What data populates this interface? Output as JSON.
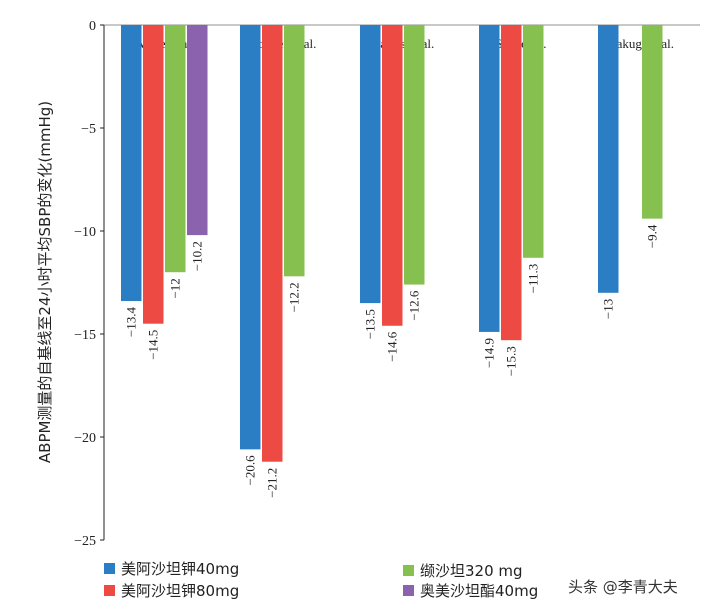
{
  "chart_data": {
    "type": "bar",
    "ylabel": "ABPM测量的自基线至24小时平均SBP的变化(mmHg)",
    "ylim": [
      -25,
      0
    ],
    "yticks": [
      "0",
      "-5",
      "-10",
      "-15",
      "-20",
      "-25"
    ],
    "grid": false,
    "legend_position": "bottom",
    "categories": [
      "White et al.",
      "Bonner et al.",
      "Bakris et al.",
      "Sica et al.",
      "Rakugi et al."
    ],
    "series": [
      {
        "name": "美阿沙坦钾40mg",
        "color": "#2b7ec4",
        "values": [
          -13.4,
          -20.6,
          -13.5,
          -14.9,
          -13
        ]
      },
      {
        "name": "美阿沙坦钾80mg",
        "color": "#ee4a44",
        "values": [
          -14.5,
          -21.2,
          -14.6,
          -15.3,
          null
        ]
      },
      {
        "name": "缬沙坦320 mg",
        "color": "#86c04f",
        "values": [
          -12,
          -12.2,
          -12.6,
          -11.3,
          -9.4
        ]
      },
      {
        "name": "奥美沙坦酯40mg",
        "color": "#8a62ad",
        "values": [
          -10.2,
          null,
          null,
          null,
          null
        ]
      }
    ]
  },
  "watermark": "头条 @李青大夫"
}
